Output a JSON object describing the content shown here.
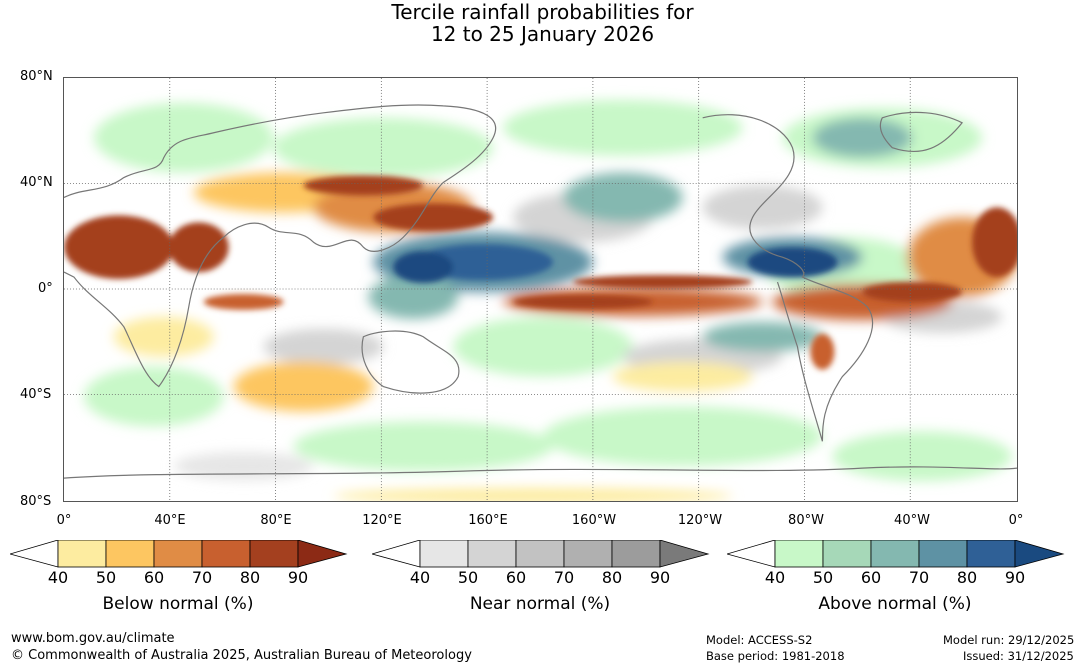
{
  "title": {
    "line1": "Tercile rainfall probabilities for",
    "line2": "12 to 25 January 2026"
  },
  "axes": {
    "lat_labels": [
      "80°N",
      "40°N",
      "0°",
      "40°S",
      "80°S"
    ],
    "lon_labels": [
      "0°",
      "40°E",
      "80°E",
      "120°E",
      "160°E",
      "160°W",
      "120°W",
      "80°W",
      "40°W",
      "0°"
    ]
  },
  "legends": [
    {
      "title": "Below normal (%)",
      "ticks": [
        "40",
        "50",
        "60",
        "70",
        "80",
        "90"
      ],
      "colors": [
        "#ffffff",
        "#fdeca0",
        "#fdc661",
        "#e08c45",
        "#c8602f",
        "#a4401f",
        "#8c2a15"
      ]
    },
    {
      "title": "Near normal (%)",
      "ticks": [
        "40",
        "50",
        "60",
        "70",
        "80",
        "90"
      ],
      "colors": [
        "#ffffff",
        "#e6e6e6",
        "#d4d4d4",
        "#c2c2c2",
        "#b0b0b0",
        "#9c9c9c",
        "#7a7a7a"
      ]
    },
    {
      "title": "Above normal (%)",
      "ticks": [
        "40",
        "50",
        "60",
        "70",
        "80",
        "90"
      ],
      "colors": [
        "#ffffff",
        "#c8f8c8",
        "#a6d8b8",
        "#84b8b0",
        "#5e92a4",
        "#2f6096",
        "#1a4a80"
      ]
    }
  ],
  "footer": {
    "url": "www.bom.gov.au/climate",
    "copyright": "© Commonwealth of Australia 2025, Australian Bureau of Meteorology",
    "model": "Model: ACCESS-S2",
    "base_period": "Base period: 1981-2018",
    "model_run": "Model run: 29/12/2025",
    "issued": "Issued: 31/12/2025"
  }
}
